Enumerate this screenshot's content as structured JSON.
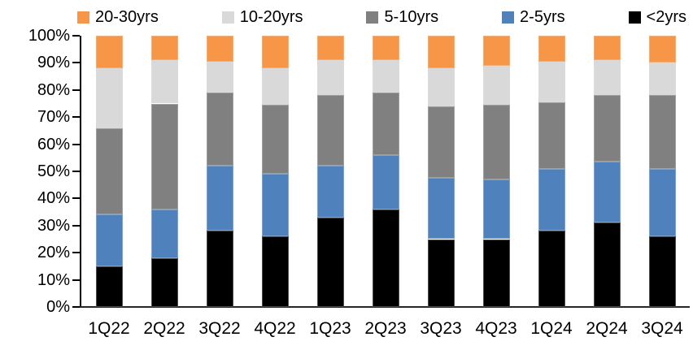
{
  "chart_data": {
    "type": "bar",
    "variant": "100%-stacked-column",
    "title": "",
    "xlabel": "",
    "ylabel": "",
    "grid": false,
    "ylim": [
      0,
      100
    ],
    "yticks": [
      "0%",
      "10%",
      "20%",
      "30%",
      "40%",
      "50%",
      "60%",
      "70%",
      "80%",
      "90%",
      "100%"
    ],
    "categories": [
      "1Q22",
      "2Q22",
      "3Q22",
      "4Q22",
      "1Q23",
      "2Q23",
      "3Q23",
      "4Q23",
      "1Q24",
      "2Q24",
      "3Q24"
    ],
    "stack_order": "bottom-to-top",
    "series": [
      {
        "name": "<2yrs",
        "color": "#000000",
        "values": [
          15,
          18,
          28,
          26,
          33,
          36,
          25,
          25,
          28,
          31,
          26
        ]
      },
      {
        "name": "2-5yrs",
        "color": "#4F81BD",
        "values": [
          19,
          18,
          24,
          23,
          19,
          20,
          22.5,
          22,
          23,
          22.5,
          25
        ]
      },
      {
        "name": "5-10yrs",
        "color": "#808080",
        "values": [
          32,
          39,
          27,
          25.5,
          26,
          23,
          26.5,
          27.5,
          24.5,
          24.5,
          27
        ]
      },
      {
        "name": "10-20yrs",
        "color": "#D9D9D9",
        "values": [
          22,
          16,
          11.5,
          13.5,
          13,
          12,
          14,
          14.5,
          15,
          13,
          12
        ]
      },
      {
        "name": "20-30yrs",
        "color": "#F79646",
        "values": [
          12,
          9,
          9.5,
          12,
          9,
          9,
          12,
          11,
          9.5,
          9,
          10
        ]
      }
    ],
    "legend": {
      "position": "top",
      "labels": [
        "20-30yrs",
        "10-20yrs",
        "5-10yrs",
        "2-5yrs",
        "<2yrs"
      ]
    },
    "colors": {
      "axis": "#000000",
      "background": "#ffffff"
    }
  }
}
